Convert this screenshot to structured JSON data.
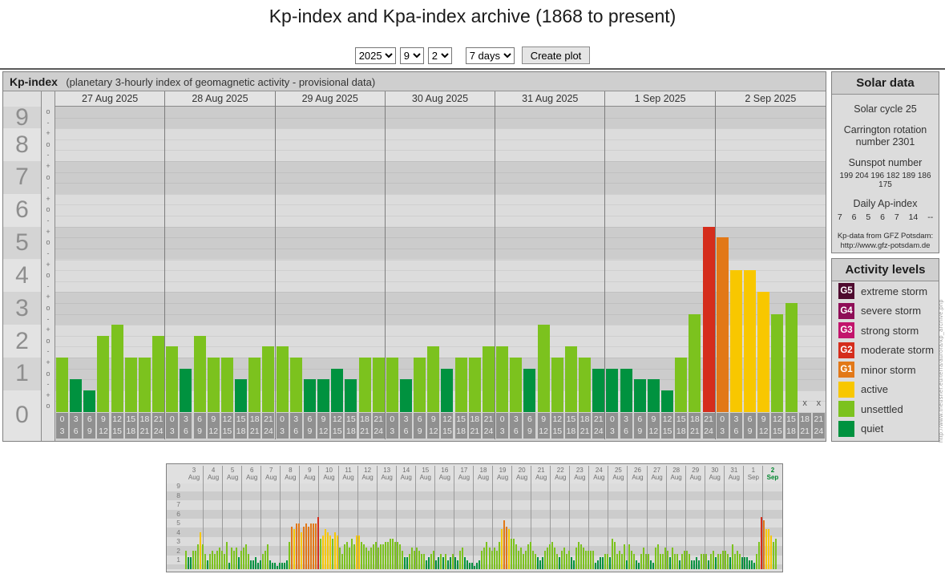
{
  "page": {
    "title": "Kp-index and Kpa-index archive (1868 to present)"
  },
  "controls": {
    "year": "2025",
    "month": "9",
    "day": "2",
    "range": "7 days",
    "create_button": "Create plot"
  },
  "colors": {
    "quiet": "#00923f",
    "unsettled": "#7cc21e",
    "active": "#f8c700",
    "minor_storm": "#e27817",
    "moderate_storm": "#d52d1c",
    "strong_storm": "#c2146c",
    "severe_storm": "#8e0e57",
    "extreme_storm": "#4e0b2f"
  },
  "chart_data": [
    {
      "type": "bar",
      "title": "Kp-index",
      "subtitle": "(planetary 3-hourly index of geomagnetic activity - provisional data)",
      "ylabel": "Kp",
      "ylim": [
        0,
        9.33
      ],
      "y_ticks": [
        9,
        8,
        7,
        6,
        5,
        4,
        3,
        2,
        1,
        0
      ],
      "y_sublabels": [
        "+",
        "o",
        "-"
      ],
      "grid": true,
      "legend_position": "right",
      "x_slot_hours": [
        [
          "0",
          "3"
        ],
        [
          "3",
          "6"
        ],
        [
          "6",
          "9"
        ],
        [
          "9",
          "12"
        ],
        [
          "12",
          "15"
        ],
        [
          "15",
          "18"
        ],
        [
          "18",
          "21"
        ],
        [
          "21",
          "24"
        ]
      ],
      "missing_marker": "x",
      "days": [
        {
          "date": "27 Aug 2025",
          "kp": [
            1.67,
            1.0,
            0.67,
            2.33,
            2.67,
            1.67,
            1.67,
            2.33
          ]
        },
        {
          "date": "28 Aug 2025",
          "kp": [
            2.0,
            1.33,
            2.33,
            1.67,
            1.67,
            1.0,
            1.67,
            2.0
          ]
        },
        {
          "date": "29 Aug 2025",
          "kp": [
            2.0,
            1.67,
            1.0,
            1.0,
            1.33,
            1.0,
            1.67,
            1.67
          ]
        },
        {
          "date": "30 Aug 2025",
          "kp": [
            1.67,
            1.0,
            1.67,
            2.0,
            1.33,
            1.67,
            1.67,
            2.0
          ]
        },
        {
          "date": "31 Aug 2025",
          "kp": [
            2.0,
            1.67,
            1.33,
            2.67,
            1.67,
            2.0,
            1.67,
            1.33
          ]
        },
        {
          "date": "1 Sep 2025",
          "kp": [
            1.33,
            1.33,
            1.0,
            1.0,
            0.67,
            1.67,
            3.0,
            5.67
          ]
        },
        {
          "date": "2 Sep 2025",
          "kp": [
            5.33,
            4.33,
            4.33,
            3.67,
            3.0,
            3.33,
            null,
            null
          ]
        }
      ]
    },
    {
      "type": "bar",
      "title": "31-day Kp overview",
      "ylim": [
        0,
        9.33
      ],
      "y_ticks": [
        9,
        8,
        7,
        6,
        5,
        4,
        3,
        2,
        1
      ],
      "days": [
        {
          "date": "3 Aug",
          "kp": [
            2.0,
            1.33,
            1.33,
            2.0,
            2.0,
            2.67,
            4.0,
            2.67
          ]
        },
        {
          "date": "4 Aug",
          "kp": [
            1.67,
            1.0,
            1.67,
            2.0,
            1.67,
            2.0,
            2.33,
            2.0
          ]
        },
        {
          "date": "5 Aug",
          "kp": [
            1.67,
            3.0,
            0.67,
            2.33,
            2.0,
            2.33,
            1.33,
            2.0
          ]
        },
        {
          "date": "6 Aug",
          "kp": [
            2.33,
            2.67,
            1.67,
            1.0,
            1.0,
            1.33,
            0.67,
            1.0
          ]
        },
        {
          "date": "7 Aug",
          "kp": [
            1.67,
            2.0,
            2.67,
            1.0,
            0.67,
            0.67,
            0.33,
            0.67
          ]
        },
        {
          "date": "8 Aug",
          "kp": [
            0.67,
            0.67,
            1.0,
            3.0,
            4.67,
            4.33,
            5.0,
            5.0
          ]
        },
        {
          "date": "9 Aug",
          "kp": [
            4.0,
            4.67,
            5.0,
            4.67,
            5.0,
            5.0,
            5.0,
            5.67
          ]
        },
        {
          "date": "10 Aug",
          "kp": [
            3.33,
            3.67,
            4.33,
            4.0,
            3.67,
            3.33,
            4.0,
            3.67
          ]
        },
        {
          "date": "11 Aug",
          "kp": [
            2.33,
            1.67,
            2.67,
            3.0,
            2.33,
            3.33,
            2.67,
            3.67
          ]
        },
        {
          "date": "12 Aug",
          "kp": [
            3.67,
            3.0,
            2.67,
            2.33,
            2.0,
            2.33,
            2.67,
            3.0
          ]
        },
        {
          "date": "13 Aug",
          "kp": [
            2.33,
            2.67,
            2.67,
            3.0,
            3.0,
            3.33,
            3.33,
            3.0
          ]
        },
        {
          "date": "14 Aug",
          "kp": [
            3.0,
            2.67,
            2.0,
            1.33,
            1.33,
            1.67,
            2.33,
            2.0
          ]
        },
        {
          "date": "15 Aug",
          "kp": [
            2.33,
            2.0,
            1.67,
            1.67,
            1.0,
            1.33,
            1.67,
            2.0
          ]
        },
        {
          "date": "16 Aug",
          "kp": [
            1.0,
            1.33,
            1.67,
            1.33,
            1.67,
            1.0,
            1.33,
            1.67
          ]
        },
        {
          "date": "17 Aug",
          "kp": [
            1.33,
            1.0,
            2.0,
            2.33,
            1.33,
            1.0,
            0.67,
            0.67
          ]
        },
        {
          "date": "18 Aug",
          "kp": [
            0.33,
            0.67,
            1.0,
            2.0,
            2.33,
            3.0,
            2.33,
            2.0
          ]
        },
        {
          "date": "19 Aug",
          "kp": [
            2.33,
            2.0,
            3.0,
            4.33,
            5.33,
            4.67,
            4.33,
            3.33
          ]
        },
        {
          "date": "20 Aug",
          "kp": [
            3.33,
            2.67,
            2.0,
            2.33,
            1.67,
            2.0,
            2.67,
            3.0
          ]
        },
        {
          "date": "21 Aug",
          "kp": [
            2.0,
            1.67,
            1.33,
            1.0,
            1.33,
            2.0,
            2.33,
            2.67
          ]
        },
        {
          "date": "22 Aug",
          "kp": [
            3.0,
            2.33,
            1.67,
            1.33,
            2.0,
            2.33,
            1.67,
            2.0
          ]
        },
        {
          "date": "23 Aug",
          "kp": [
            1.33,
            1.0,
            2.33,
            3.0,
            2.67,
            2.33,
            2.0,
            2.0
          ]
        },
        {
          "date": "24 Aug",
          "kp": [
            2.0,
            2.0,
            0.67,
            1.0,
            1.33,
            1.33,
            1.67,
            1.67
          ]
        },
        {
          "date": "25 Aug",
          "kp": [
            1.33,
            3.33,
            3.0,
            1.67,
            2.0,
            1.67,
            2.67,
            1.0
          ]
        },
        {
          "date": "26 Aug",
          "kp": [
            2.67,
            2.0,
            1.67,
            1.0,
            0.67,
            1.67,
            2.33,
            1.67
          ]
        },
        {
          "date": "27 Aug",
          "kp": [
            1.67,
            1.0,
            0.67,
            2.33,
            2.67,
            1.67,
            1.67,
            2.33
          ]
        },
        {
          "date": "28 Aug",
          "kp": [
            2.0,
            1.33,
            2.33,
            1.67,
            1.67,
            1.0,
            1.67,
            2.0
          ]
        },
        {
          "date": "29 Aug",
          "kp": [
            2.0,
            1.67,
            1.0,
            1.0,
            1.33,
            1.0,
            1.67,
            1.67
          ]
        },
        {
          "date": "30 Aug",
          "kp": [
            1.67,
            1.0,
            1.67,
            2.0,
            1.33,
            1.67,
            1.67,
            2.0
          ]
        },
        {
          "date": "31 Aug",
          "kp": [
            2.0,
            1.67,
            1.33,
            2.67,
            1.67,
            2.0,
            1.67,
            1.33
          ]
        },
        {
          "date": "1 Sep",
          "kp": [
            1.33,
            1.33,
            1.0,
            1.0,
            0.67,
            1.67,
            3.0,
            5.67
          ]
        },
        {
          "date": "2 Sep",
          "kp": [
            5.33,
            4.33,
            4.33,
            3.67,
            3.0,
            3.33,
            null,
            null
          ],
          "highlight": true
        }
      ]
    }
  ],
  "solar_data": {
    "title": "Solar data",
    "cycle": "Solar cycle 25",
    "carrington": "Carrington rotation number 2301",
    "sunspot_label": "Sunspot number",
    "sunspot_values": "199 204 196 182 189 186 175",
    "ap_label": "Daily Ap-index",
    "ap_values": "7 6 5 6 7 14 --",
    "credit_line1": "Kp-data from GFZ Potsdam:",
    "credit_line2": "http://www.gfz-potsdam.de"
  },
  "activity_levels": {
    "title": "Activity levels",
    "items": [
      {
        "badge": "G5",
        "label": "extreme storm",
        "color_key": "extreme_storm"
      },
      {
        "badge": "G4",
        "label": "severe storm",
        "color_key": "severe_storm"
      },
      {
        "badge": "G3",
        "label": "strong storm",
        "color_key": "strong_storm"
      },
      {
        "badge": "G2",
        "label": "moderate storm",
        "color_key": "moderate_storm"
      },
      {
        "badge": "G1",
        "label": "minor storm",
        "color_key": "minor_storm"
      },
      {
        "badge": "",
        "label": "active",
        "color_key": "active"
      },
      {
        "badge": "",
        "label": "unsettled",
        "color_key": "unsettled"
      },
      {
        "badge": "",
        "label": "quiet",
        "color_key": "quiet"
      }
    ]
  },
  "watermark": "http://www.theusner.eu/terra/aurora/kp_archive.php"
}
